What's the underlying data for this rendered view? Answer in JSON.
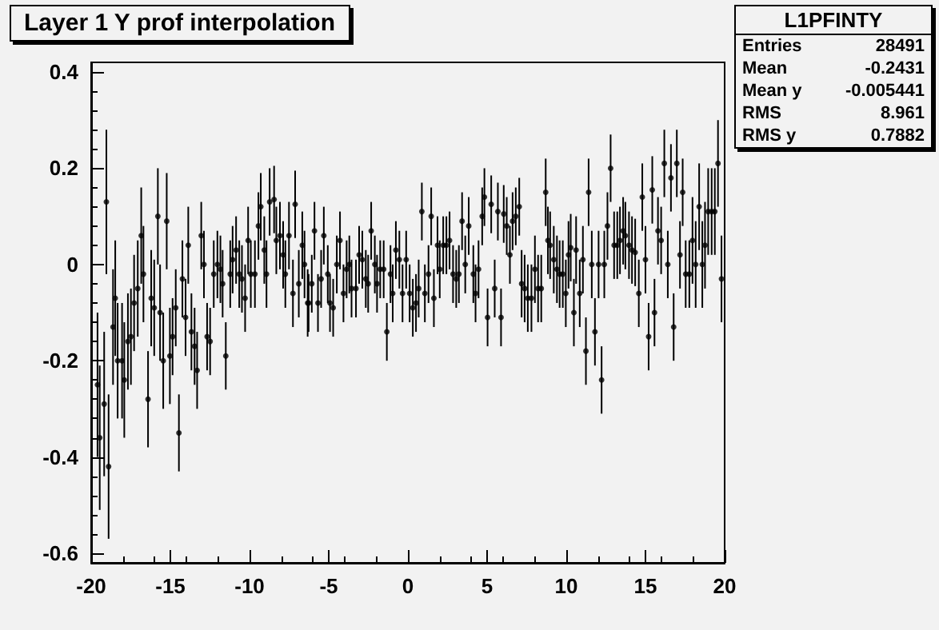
{
  "chart_data": {
    "type": "scatter",
    "title": "Layer 1 Y prof interpolation",
    "annotations": [
      "L1PFINTY",
      "Entries 28491",
      "Mean -0.2431",
      "Mean y -0.005441",
      "RMS 8.961",
      "RMS y 0.7882"
    ],
    "xlim": [
      -20,
      20
    ],
    "xticks": [
      -20,
      -15,
      -10,
      -5,
      0,
      5,
      10,
      15,
      20
    ],
    "ylim": [
      -0.62,
      0.42
    ],
    "yticks": [
      -0.6,
      -0.4,
      -0.2,
      0,
      0.2,
      0.4
    ],
    "grid": false,
    "marker": "circle",
    "series": [
      {
        "color": "#000000",
        "x": [
          -19.6,
          -19.46,
          -19.18,
          -19.04,
          -18.9,
          -18.62,
          -18.48,
          -18.33,
          -18.05,
          -17.91,
          -17.68,
          -17.49,
          -17.29,
          -17.06,
          -16.84,
          -16.7,
          -16.41,
          -16.21,
          -16.02,
          -15.79,
          -15.65,
          -15.45,
          -15.23,
          -15.03,
          -14.86,
          -14.66,
          -14.46,
          -14.24,
          -14.04,
          -13.87,
          -13.67,
          -13.47,
          -13.31,
          -13.05,
          -12.88,
          -12.68,
          -12.49,
          -12.26,
          -12.03,
          -11.84,
          -11.7,
          -11.5,
          -11.22,
          -11.07,
          -10.85,
          -10.65,
          -10.48,
          -10.28,
          -10.09,
          -9.92,
          -9.66,
          -9.44,
          -9.29,
          -9.07,
          -8.93,
          -8.73,
          -8.45,
          -8.31,
          -8.08,
          -7.88,
          -7.74,
          -7.51,
          -7.26,
          -7.12,
          -6.89,
          -6.67,
          -6.53,
          -6.33,
          -6.27,
          -6.07,
          -5.9,
          -5.68,
          -5.48,
          -5.31,
          -5.06,
          -4.92,
          -4.72,
          -4.49,
          -4.29,
          -4.07,
          -3.87,
          -3.7,
          -3.56,
          -3.28,
          -3.08,
          -2.88,
          -2.66,
          -2.51,
          -2.32,
          -2.09,
          -1.95,
          -1.75,
          -1.53,
          -1.33,
          -1.1,
          -0.96,
          -0.76,
          -0.54,
          -0.34,
          -0.11,
          0.11,
          0.31,
          0.51,
          0.68,
          0.88,
          1.07,
          1.3,
          1.47,
          1.64,
          1.87,
          2.01,
          2.23,
          2.43,
          2.63,
          2.85,
          3.05,
          3.22,
          3.42,
          3.62,
          3.84,
          4.13,
          4.27,
          4.46,
          4.69,
          4.83,
          5.03,
          5.26,
          5.48,
          5.68,
          5.88,
          6.05,
          6.24,
          6.44,
          6.61,
          6.81,
          7.03,
          7.18,
          7.37,
          7.57,
          7.8,
          8.02,
          8.22,
          8.42,
          8.7,
          8.84,
          8.98,
          9.21,
          9.41,
          9.58,
          9.78,
          9.97,
          10.14,
          10.28,
          10.48,
          10.62,
          10.85,
          11.05,
          11.24,
          11.41,
          11.61,
          11.81,
          12.04,
          12.23,
          12.4,
          12.6,
          12.8,
          13.02,
          13.22,
          13.39,
          13.59,
          13.73,
          13.96,
          14.15,
          14.35,
          14.58,
          14.8,
          15.0,
          15.2,
          15.43,
          15.57,
          15.79,
          15.99,
          16.19,
          16.41,
          16.61,
          16.78,
          16.98,
          17.18,
          17.35,
          17.54,
          17.77,
          17.97,
          18.17,
          18.39,
          18.59,
          18.76,
          18.96,
          19.18,
          19.38,
          19.58,
          19.8
        ],
        "values": [
          -0.25,
          -0.36,
          -0.29,
          0.13,
          -0.42,
          -0.13,
          -0.07,
          -0.2,
          -0.2,
          -0.24,
          -0.16,
          -0.15,
          -0.08,
          -0.05,
          0.06,
          -0.02,
          -0.28,
          -0.07,
          -0.09,
          0.1,
          -0.1,
          -0.2,
          0.09,
          -0.19,
          -0.15,
          -0.09,
          -0.35,
          -0.03,
          -0.11,
          0.04,
          -0.14,
          -0.17,
          -0.22,
          0.06,
          0.0,
          -0.15,
          -0.16,
          -0.02,
          0.0,
          -0.01,
          -0.04,
          -0.19,
          -0.02,
          0.01,
          0.03,
          -0.02,
          -0.03,
          -0.07,
          0.05,
          -0.02,
          -0.02,
          0.08,
          0.12,
          0.03,
          -0.02,
          0.13,
          0.135,
          0.05,
          0.06,
          0.02,
          -0.02,
          0.06,
          -0.06,
          0.125,
          -0.04,
          0.04,
          0.0,
          -0.08,
          -0.08,
          -0.04,
          0.07,
          -0.08,
          -0.03,
          0.06,
          -0.02,
          -0.08,
          -0.09,
          0.0,
          0.05,
          -0.06,
          -0.01,
          0.0,
          -0.05,
          -0.05,
          0.02,
          0.01,
          -0.03,
          -0.04,
          0.07,
          0.0,
          -0.04,
          -0.01,
          -0.01,
          -0.14,
          -0.02,
          -0.06,
          0.03,
          0.01,
          -0.06,
          0.01,
          -0.06,
          -0.09,
          -0.08,
          -0.05,
          0.11,
          -0.06,
          -0.02,
          0.1,
          -0.07,
          0.04,
          -0.01,
          0.04,
          0.04,
          0.05,
          -0.02,
          -0.03,
          -0.02,
          0.09,
          0.0,
          0.08,
          -0.02,
          -0.06,
          -0.01,
          0.1,
          0.14,
          -0.11,
          0.125,
          -0.05,
          0.11,
          -0.11,
          0.105,
          0.08,
          0.02,
          0.09,
          0.1,
          0.12,
          -0.04,
          -0.05,
          -0.07,
          -0.07,
          -0.01,
          -0.05,
          -0.05,
          0.15,
          0.05,
          0.04,
          0.01,
          -0.01,
          -0.02,
          -0.02,
          -0.06,
          0.02,
          0.035,
          -0.1,
          0.03,
          -0.06,
          0.01,
          -0.18,
          0.15,
          0.0,
          -0.14,
          0.0,
          -0.24,
          0.0,
          0.08,
          0.2,
          0.04,
          0.04,
          0.05,
          0.07,
          0.06,
          0.04,
          0.03,
          0.025,
          -0.06,
          0.14,
          0.01,
          -0.15,
          0.155,
          -0.1,
          0.07,
          0.05,
          0.21,
          0.0,
          0.18,
          -0.13,
          0.21,
          0.02,
          0.15,
          -0.02,
          -0.02,
          0.05,
          0.0,
          0.12,
          0.0,
          0.04,
          0.11,
          0.11,
          0.11,
          0.21,
          -0.03
        ],
        "errors": [
          0.15,
          0.15,
          0.15,
          0.15,
          0.15,
          0.12,
          0.12,
          0.12,
          0.12,
          0.12,
          0.1,
          0.1,
          0.1,
          0.1,
          0.1,
          0.1,
          0.1,
          0.1,
          0.1,
          0.1,
          0.1,
          0.1,
          0.1,
          0.1,
          0.08,
          0.08,
          0.08,
          0.08,
          0.08,
          0.08,
          0.08,
          0.08,
          0.08,
          0.07,
          0.07,
          0.07,
          0.07,
          0.07,
          0.07,
          0.07,
          0.07,
          0.07,
          0.07,
          0.07,
          0.07,
          0.07,
          0.07,
          0.07,
          0.07,
          0.07,
          0.07,
          0.07,
          0.07,
          0.07,
          0.07,
          0.07,
          0.07,
          0.07,
          0.07,
          0.07,
          0.07,
          0.07,
          0.07,
          0.07,
          0.07,
          0.07,
          0.07,
          0.07,
          0.06,
          0.06,
          0.06,
          0.06,
          0.06,
          0.06,
          0.06,
          0.06,
          0.06,
          0.06,
          0.06,
          0.06,
          0.06,
          0.06,
          0.06,
          0.06,
          0.06,
          0.06,
          0.06,
          0.06,
          0.06,
          0.06,
          0.06,
          0.06,
          0.06,
          0.06,
          0.06,
          0.06,
          0.06,
          0.06,
          0.06,
          0.06,
          0.06,
          0.06,
          0.06,
          0.06,
          0.06,
          0.06,
          0.06,
          0.06,
          0.06,
          0.06,
          0.06,
          0.06,
          0.06,
          0.06,
          0.06,
          0.06,
          0.06,
          0.06,
          0.06,
          0.06,
          0.06,
          0.06,
          0.06,
          0.06,
          0.06,
          0.06,
          0.06,
          0.06,
          0.06,
          0.06,
          0.06,
          0.06,
          0.06,
          0.06,
          0.06,
          0.06,
          0.07,
          0.07,
          0.07,
          0.07,
          0.07,
          0.07,
          0.07,
          0.07,
          0.07,
          0.07,
          0.07,
          0.07,
          0.07,
          0.07,
          0.07,
          0.07,
          0.07,
          0.07,
          0.07,
          0.07,
          0.07,
          0.07,
          0.07,
          0.07,
          0.07,
          0.07,
          0.07,
          0.07,
          0.07,
          0.07,
          0.07,
          0.07,
          0.07,
          0.07,
          0.07,
          0.07,
          0.07,
          0.07,
          0.07,
          0.07,
          0.07,
          0.07,
          0.07,
          0.07,
          0.07,
          0.07,
          0.07,
          0.07,
          0.07,
          0.07,
          0.07,
          0.07,
          0.07,
          0.07,
          0.07,
          0.09,
          0.09,
          0.09,
          0.09,
          0.09,
          0.09,
          0.09,
          0.09,
          0.09,
          0.09
        ]
      }
    ]
  }
}
